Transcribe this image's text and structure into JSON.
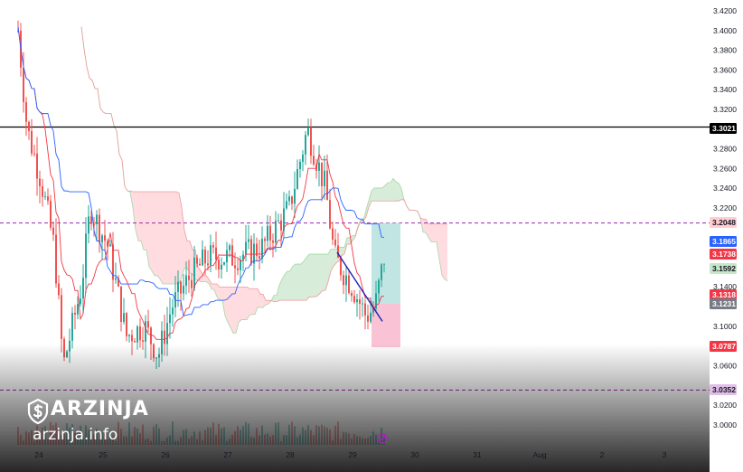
{
  "chart_data": {
    "type": "candlestick",
    "y_axis": {
      "ticks": [
        "3.4200",
        "3.4000",
        "3.3800",
        "3.3600",
        "3.3400",
        "3.3200",
        "3.2800",
        "3.2600",
        "3.2400",
        "3.2200",
        "3.1400",
        "3.1000",
        "3.0600",
        "3.0200",
        "3.0000"
      ],
      "range": [
        2.98,
        3.43
      ]
    },
    "x_axis": {
      "ticks": [
        "24",
        "25",
        "26",
        "27",
        "28",
        "29",
        "30",
        "31",
        "Aug",
        "2",
        "3"
      ]
    },
    "horizontal_levels": [
      {
        "price": "3.3021",
        "style": "solid",
        "color": "#000000"
      },
      {
        "price": "3.2048",
        "style": "dashed",
        "color": "#9c27b0"
      },
      {
        "price": "3.0352",
        "style": "dashed",
        "color": "#9c27b0"
      }
    ],
    "price_tags": [
      {
        "label": "3.3021",
        "bg": "#000000",
        "fg": "#ffffff"
      },
      {
        "label": "3.2048",
        "bg": "#ffcdd2",
        "fg": "#131722"
      },
      {
        "label": "3.1865",
        "bg": "#2962ff",
        "fg": "#ffffff"
      },
      {
        "label": "3.1738",
        "bg": "#f23645",
        "fg": "#ffffff"
      },
      {
        "label": "3.1592",
        "bg": "#c8e6c9",
        "fg": "#131722"
      },
      {
        "label": "3.1318",
        "bg": "#f23645",
        "fg": "#ffffff"
      },
      {
        "label": "3.1231",
        "bg": "#787b86",
        "fg": "#ffffff"
      },
      {
        "label": "3.0787",
        "bg": "#f23645",
        "fg": "#ffffff"
      },
      {
        "label": "3.0352",
        "bg": "#e1bee7",
        "fg": "#131722"
      }
    ],
    "ichimoku": {
      "tenkan_color": "#2962ff",
      "kijun_color": "#f23645",
      "bull_cloud_color": "#c8e6c9",
      "bear_cloud_color": "#ffcdd2"
    },
    "position_tool": {
      "entry": 3.1231,
      "target": 3.2048,
      "stop": 3.0787,
      "profit_color": "#b2dfdb",
      "loss_color": "#f8bbd0"
    },
    "trendline": {
      "from_price": 3.175,
      "to_price": 3.105,
      "color": "#1e1eb4"
    },
    "colors": {
      "up": "#26a69a",
      "down": "#ef5350"
    }
  },
  "watermark": {
    "brand": "ARZINJA",
    "url": "arzinja.info"
  }
}
